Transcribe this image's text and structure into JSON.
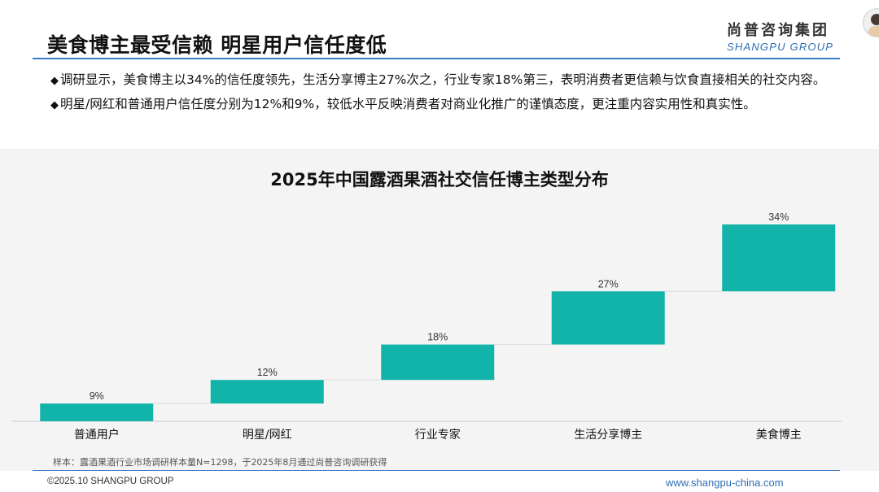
{
  "header": {
    "title": "美食博主最受信赖 明星用户信任度低",
    "brand_cn": "尚普咨询集团",
    "brand_en": "SHANGPU GROUP"
  },
  "bullets": [
    {
      "symbol": "◆",
      "text": "调研显示，美食博主以34%的信任度领先，生活分享博主27%次之，行业专家18%第三，表明消费者更信赖与饮食直接相关的社交内容。"
    },
    {
      "symbol": "◆",
      "text": "明星/网红和普通用户信任度分别为12%和9%，较低水平反映消费者对商业化推广的谨慎态度，更注重内容实用性和真实性。"
    }
  ],
  "chart_data": {
    "type": "bar",
    "subtype": "waterfall",
    "title": "2025年中国露酒果酒社交信任博主类型分布",
    "categories": [
      "普通用户",
      "明星/网红",
      "行业专家",
      "生活分享博主",
      "美食博主"
    ],
    "values": [
      9,
      12,
      18,
      27,
      34
    ],
    "value_labels": [
      "9%",
      "12%",
      "18%",
      "27%",
      "34%"
    ],
    "unit": "%",
    "bar_color": "#12b3a8",
    "connector_color": "#d9d9d9",
    "ylim": [
      0,
      100
    ],
    "grid": false,
    "legend": "none"
  },
  "footnote": "样本：露酒果酒行业市场调研样本量N=1298，于2025年8月通过尚普咨询调研获得",
  "footer": {
    "copyright": "©2025.10 SHANGPU GROUP",
    "website": "www.shangpu-china.com"
  },
  "colors": {
    "accent_blue": "#3a78c8",
    "bar_teal": "#12b3a8",
    "panel_bg": "#f4f4f4"
  }
}
